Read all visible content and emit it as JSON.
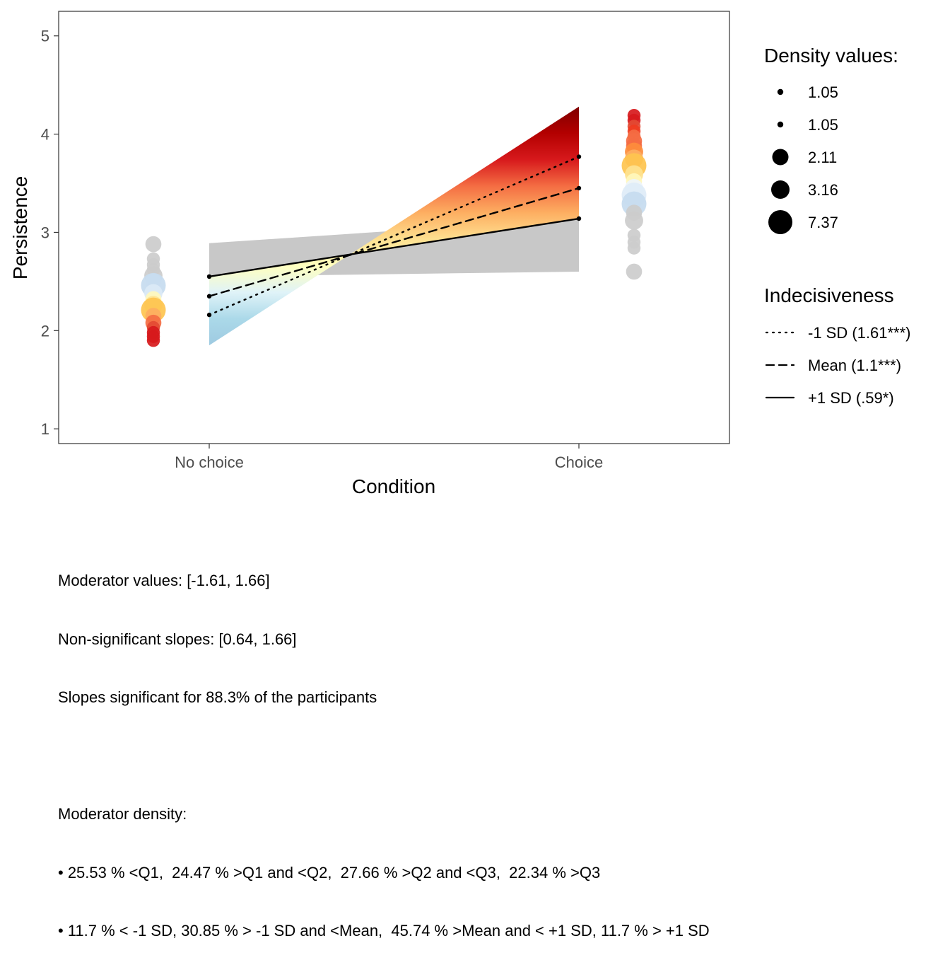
{
  "chart_data": {
    "type": "line",
    "title": "",
    "xlabel": "Condition",
    "ylabel": "Persistence",
    "categories": [
      "No choice",
      "Choice"
    ],
    "ylim": [
      0.85,
      5.25
    ],
    "yticks": [
      1,
      2,
      3,
      4,
      5
    ],
    "grid": false,
    "moderator": "Indecisiveness",
    "series": [
      {
        "name": "-1 SD (1.61***)",
        "linetype": "dotted",
        "values": [
          2.16,
          3.77
        ]
      },
      {
        "name": "Mean (1.1***)",
        "linetype": "dashed",
        "values": [
          2.35,
          3.45
        ]
      },
      {
        "name": "+1 SD (.59*)",
        "linetype": "solid",
        "values": [
          2.55,
          3.14
        ]
      }
    ],
    "fan": {
      "significant_top": [
        1.85,
        4.28
      ],
      "significant_bottom": [
        2.55,
        3.14
      ],
      "nonsignificant_top": [
        2.89,
        3.14
      ],
      "nonsignificant_bottom": [
        2.55,
        2.6
      ],
      "colors": [
        "#7f0000",
        "#b30000",
        "#d7191c",
        "#f46d43",
        "#fdae61",
        "#fee090",
        "#ffffbf",
        "#e0f3f8",
        "#abd9e9",
        "#9ecae1"
      ],
      "nonsignificant_color": "#c8c8c8"
    },
    "density_points": {
      "No choice": [
        {
          "y": 2.88,
          "size": 2.11,
          "color": "#cccccc"
        },
        {
          "y": 2.73,
          "size": 1.05,
          "color": "#cccccc"
        },
        {
          "y": 2.67,
          "size": 1.05,
          "color": "#cccccc"
        },
        {
          "y": 2.62,
          "size": 1.05,
          "color": "#cccccc"
        },
        {
          "y": 2.56,
          "size": 3.16,
          "color": "#cccccc"
        },
        {
          "y": 2.5,
          "size": 2.11,
          "color": "#e6eef8"
        },
        {
          "y": 2.46,
          "size": 7.37,
          "color": "#c6dbef"
        },
        {
          "y": 2.38,
          "size": 3.16,
          "color": "#dbe9f6"
        },
        {
          "y": 2.32,
          "size": 2.11,
          "color": "#fff7bc"
        },
        {
          "y": 2.26,
          "size": 3.16,
          "color": "#fee391"
        },
        {
          "y": 2.21,
          "size": 7.37,
          "color": "#fec44f"
        },
        {
          "y": 2.15,
          "size": 2.11,
          "color": "#fdae61"
        },
        {
          "y": 2.08,
          "size": 2.11,
          "color": "#f46d43"
        },
        {
          "y": 2.03,
          "size": 1.05,
          "color": "#e34a33"
        },
        {
          "y": 1.98,
          "size": 1.05,
          "color": "#d7191c"
        },
        {
          "y": 1.94,
          "size": 1.05,
          "color": "#d7191c"
        },
        {
          "y": 1.9,
          "size": 1.05,
          "color": "#d7191c"
        }
      ],
      "Choice": [
        {
          "y": 4.19,
          "size": 1.05,
          "color": "#d7191c"
        },
        {
          "y": 4.14,
          "size": 1.05,
          "color": "#d7191c"
        },
        {
          "y": 4.08,
          "size": 1.05,
          "color": "#e34a33"
        },
        {
          "y": 4.03,
          "size": 1.05,
          "color": "#f03b20"
        },
        {
          "y": 3.98,
          "size": 1.05,
          "color": "#f46d43"
        },
        {
          "y": 3.93,
          "size": 2.11,
          "color": "#f46d43"
        },
        {
          "y": 3.88,
          "size": 2.11,
          "color": "#f46d43"
        },
        {
          "y": 3.82,
          "size": 3.16,
          "color": "#fd8d3c"
        },
        {
          "y": 3.75,
          "size": 3.16,
          "color": "#fdae61"
        },
        {
          "y": 3.68,
          "size": 7.37,
          "color": "#fec44f"
        },
        {
          "y": 3.59,
          "size": 3.16,
          "color": "#fee391"
        },
        {
          "y": 3.52,
          "size": 2.11,
          "color": "#fff7bc"
        },
        {
          "y": 3.45,
          "size": 3.16,
          "color": "#eef4fb"
        },
        {
          "y": 3.38,
          "size": 7.37,
          "color": "#deebf7"
        },
        {
          "y": 3.29,
          "size": 7.37,
          "color": "#c6dbef"
        },
        {
          "y": 3.2,
          "size": 2.11,
          "color": "#cccccc"
        },
        {
          "y": 3.12,
          "size": 3.16,
          "color": "#cccccc"
        },
        {
          "y": 2.97,
          "size": 1.05,
          "color": "#cccccc"
        },
        {
          "y": 2.9,
          "size": 1.05,
          "color": "#cccccc"
        },
        {
          "y": 2.84,
          "size": 1.05,
          "color": "#cccccc"
        },
        {
          "y": 2.6,
          "size": 2.11,
          "color": "#cccccc"
        }
      ]
    },
    "legends": {
      "size_title": "Density values:",
      "size_entries": [
        "1.05",
        "1.05",
        "2.11",
        "3.16",
        "7.37"
      ],
      "size_values": [
        1.05,
        1.05,
        2.11,
        3.16,
        7.37
      ],
      "line_title": "Indecisiveness",
      "line_entries": [
        "-1 SD (1.61***)",
        "Mean (1.1***)",
        "+1 SD (.59*)"
      ],
      "placement": "right"
    }
  },
  "caption": {
    "lines": [
      "Moderator values: [-1.61, 1.66]",
      "Non-significant slopes: [0.64, 1.66]",
      "Slopes significant for 88.3% of the participants",
      "",
      "Moderator density:",
      "• 25.53 % <Q1,  24.47 % >Q1 and <Q2,  27.66 % >Q2 and <Q3,  22.34 % >Q3",
      "• 11.7 % < -1 SD, 30.85 % > -1 SD and <Mean,  45.74 % >Mean and < +1 SD, 11.7 % > +1 SD"
    ]
  }
}
